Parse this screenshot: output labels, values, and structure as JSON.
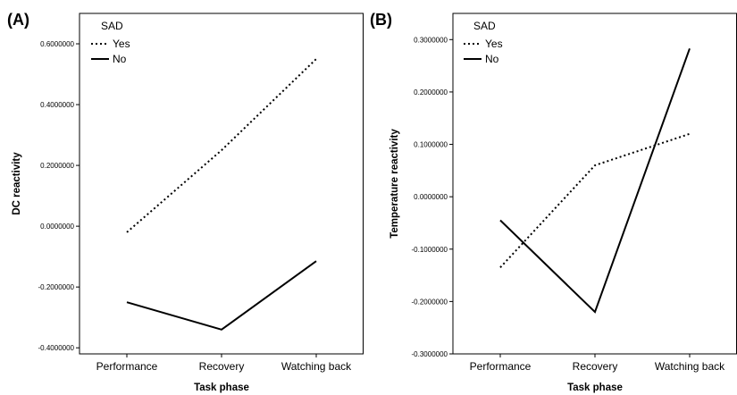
{
  "chart_data": [
    {
      "panel": "(A)",
      "type": "line",
      "categories": [
        "Performance",
        "Recovery",
        "Watching back"
      ],
      "ylabel": "DC reactivity",
      "xlabel": "Task phase",
      "ylim": [
        -0.42,
        0.7
      ],
      "yticks": [
        "0.6000000",
        "0.4000000",
        "0.2000000",
        "0.0000000",
        "-0.2000000",
        "-0.4000000"
      ],
      "ytick_values": [
        0.6,
        0.4,
        0.2,
        0.0,
        -0.2,
        -0.4
      ],
      "legend_title": "SAD",
      "legend_position": "top-left",
      "series": [
        {
          "name": "Yes",
          "style": "dotted",
          "values": [
            -0.02,
            0.25,
            0.55
          ]
        },
        {
          "name": "No",
          "style": "solid",
          "values": [
            -0.25,
            -0.34,
            -0.115
          ]
        }
      ]
    },
    {
      "panel": "(B)",
      "type": "line",
      "categories": [
        "Performance",
        "Recovery",
        "Watching back"
      ],
      "ylabel": "Temperature reactivity",
      "xlabel": "Task phase",
      "ylim": [
        -0.3,
        0.35
      ],
      "yticks": [
        "0.3000000",
        "0.2000000",
        "0.1000000",
        "0.0000000",
        "-0.1000000",
        "-0.2000000",
        "-0.3000000"
      ],
      "ytick_values": [
        0.3,
        0.2,
        0.1,
        0.0,
        -0.1,
        -0.2,
        -0.3
      ],
      "legend_title": "SAD",
      "legend_position": "top-left",
      "series": [
        {
          "name": "Yes",
          "style": "dotted",
          "values": [
            -0.135,
            0.06,
            0.12
          ]
        },
        {
          "name": "No",
          "style": "solid",
          "values": [
            -0.045,
            -0.22,
            0.283
          ]
        }
      ]
    }
  ]
}
